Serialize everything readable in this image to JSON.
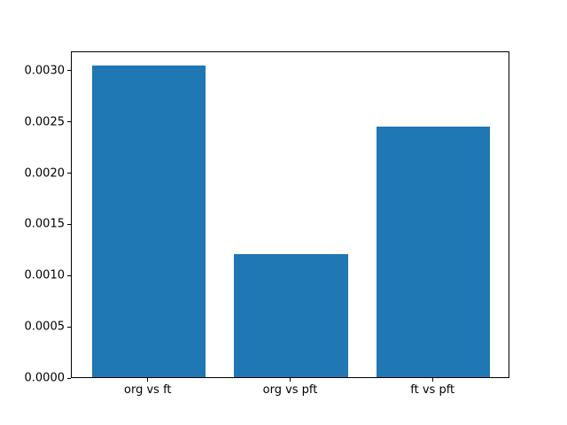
{
  "chart_data": {
    "type": "bar",
    "categories": [
      "org vs ft",
      "org vs pft",
      "ft vs pft"
    ],
    "values": [
      0.00304,
      0.0012,
      0.00245
    ],
    "title": "",
    "xlabel": "",
    "ylabel": "",
    "ylim": [
      0,
      0.00319
    ],
    "ytick_values": [
      0.0,
      0.0005,
      0.001,
      0.0015,
      0.002,
      0.0025,
      0.003
    ],
    "ytick_labels": [
      "0.0000",
      "0.0005",
      "0.0010",
      "0.0015",
      "0.0020",
      "0.0025",
      "0.0030"
    ],
    "bar_color": "#1f77b4",
    "axis_color": "#000000",
    "background_color": "#ffffff",
    "grid": false,
    "legend_position": "none"
  }
}
